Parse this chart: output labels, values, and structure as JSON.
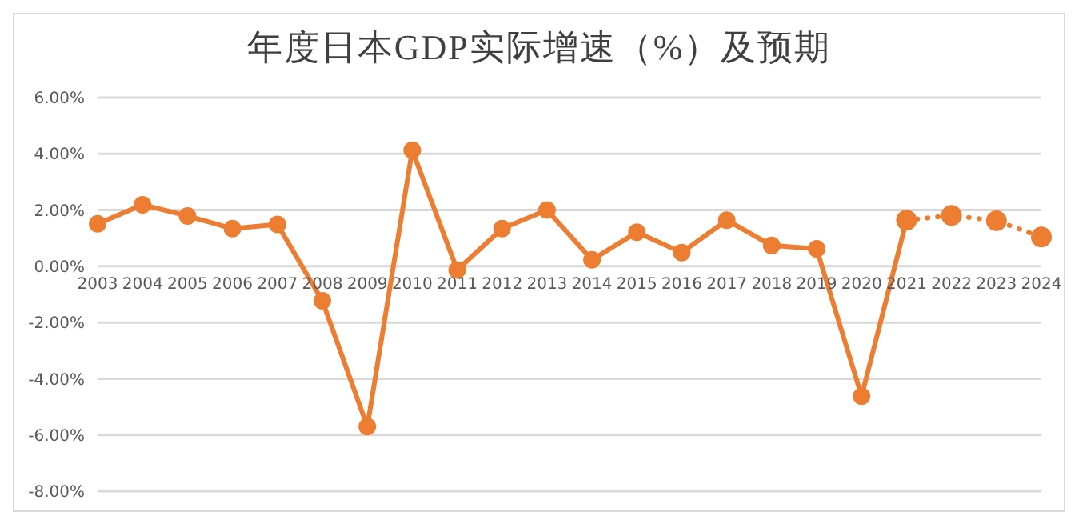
{
  "chart_data": {
    "type": "line",
    "title": "年度日本GDP实际增速（%）及预期",
    "categories": [
      "2003",
      "2004",
      "2005",
      "2006",
      "2007",
      "2008",
      "2009",
      "2010",
      "2011",
      "2012",
      "2013",
      "2014",
      "2015",
      "2016",
      "2017",
      "2018",
      "2019",
      "2020",
      "2021",
      "2022",
      "2023",
      "2024"
    ],
    "series": [
      {
        "color": "#ed7d31",
        "line_style": "solid",
        "values": [
          1.51,
          2.19,
          1.79,
          1.34,
          1.49,
          -1.23,
          -5.7,
          4.13,
          -0.13,
          1.34,
          2.0,
          0.23,
          1.21,
          0.49,
          1.64,
          0.74,
          0.62,
          -4.62,
          1.64,
          null,
          null,
          null
        ]
      },
      {
        "color": "#ed7d31",
        "line_style": "dotted",
        "values": [
          null,
          null,
          null,
          null,
          null,
          null,
          null,
          null,
          null,
          null,
          null,
          null,
          null,
          null,
          null,
          null,
          null,
          null,
          1.64,
          1.81,
          1.62,
          1.04
        ]
      }
    ],
    "ylim": [
      -8,
      6
    ],
    "yticks": [
      {
        "value": -8,
        "label": "-8.00%"
      },
      {
        "value": -6,
        "label": "-6.00%"
      },
      {
        "value": -4,
        "label": "-4.00%"
      },
      {
        "value": -2,
        "label": "-2.00%"
      },
      {
        "value": 0,
        "label": "0.00%"
      },
      {
        "value": 2,
        "label": "2.00%"
      },
      {
        "value": 4,
        "label": "4.00%"
      },
      {
        "value": 6,
        "label": "6.00%"
      }
    ],
    "grid": "y",
    "marker": "circle",
    "legend": false
  }
}
